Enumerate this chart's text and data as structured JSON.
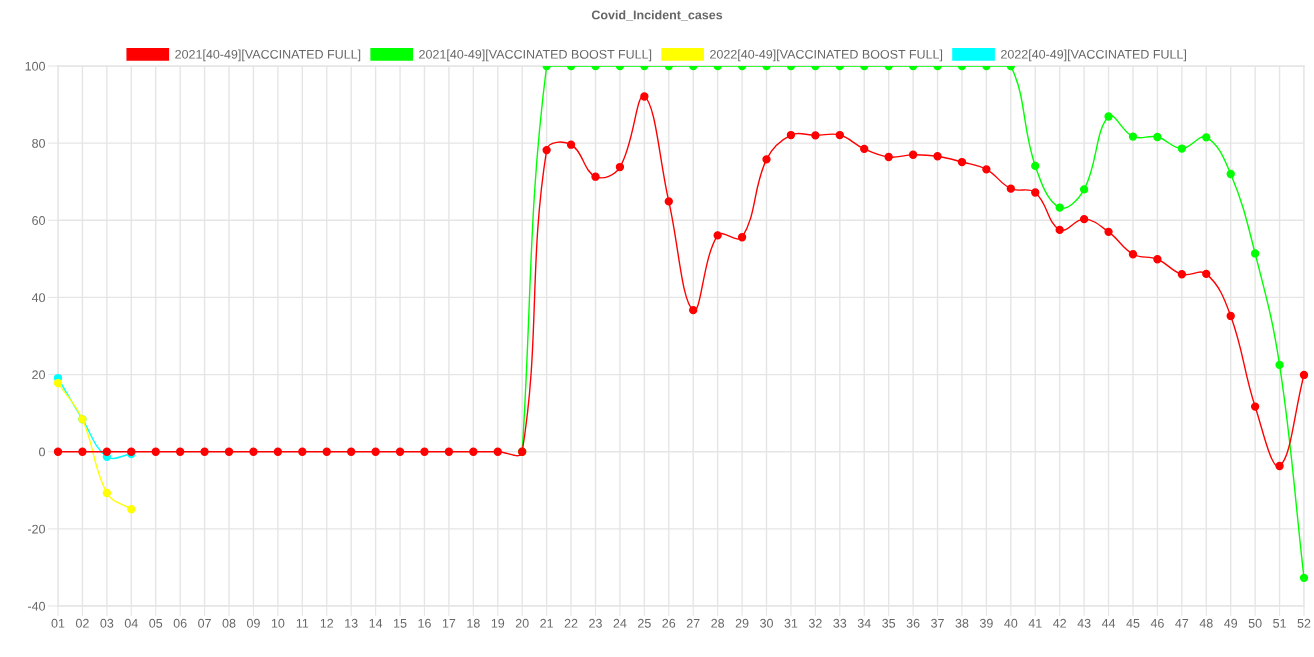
{
  "chart_data": {
    "type": "line",
    "title": "Covid_Incident_cases",
    "categories": [
      "01",
      "02",
      "03",
      "04",
      "05",
      "06",
      "07",
      "08",
      "09",
      "10",
      "11",
      "12",
      "13",
      "14",
      "15",
      "16",
      "17",
      "18",
      "19",
      "20",
      "21",
      "22",
      "23",
      "24",
      "25",
      "26",
      "27",
      "28",
      "29",
      "30",
      "31",
      "32",
      "33",
      "34",
      "35",
      "36",
      "37",
      "38",
      "39",
      "40",
      "41",
      "42",
      "43",
      "44",
      "45",
      "46",
      "47",
      "48",
      "49",
      "50",
      "51",
      "52"
    ],
    "series": [
      {
        "name": "2021[40-49][VACCINATED FULL]",
        "color": "#ff0000",
        "values": [
          0,
          0,
          0,
          0,
          0,
          0,
          0,
          0,
          0,
          0,
          0,
          0,
          0,
          0,
          0,
          0,
          0,
          0,
          0,
          0,
          78.2,
          79.6,
          71.3,
          73.8,
          92.1,
          64.9,
          36.7,
          56.1,
          55.6,
          75.8,
          82.1,
          82.0,
          82.1,
          78.5,
          76.4,
          77.0,
          76.6,
          75.1,
          73.2,
          68.2,
          67.2,
          57.5,
          60.3,
          57.0,
          51.2,
          49.9,
          46.0,
          46.1,
          35.2,
          11.7,
          -3.7,
          19.9
        ]
      },
      {
        "name": "2021[40-49][VACCINATED BOOST FULL]",
        "color": "#00ff00",
        "values": [
          null,
          null,
          null,
          null,
          null,
          null,
          null,
          null,
          null,
          null,
          null,
          null,
          null,
          null,
          null,
          null,
          null,
          null,
          null,
          0,
          100,
          100,
          100,
          100,
          100,
          100,
          100,
          100,
          100,
          100,
          100,
          100,
          100,
          100,
          100,
          100,
          100,
          100,
          100,
          100,
          74.1,
          63.3,
          68.0,
          86.9,
          81.7,
          81.6,
          78.6,
          81.5,
          72.0,
          51.4,
          22.5,
          -32.7
        ]
      },
      {
        "name": "2022[40-49][VACCINATED BOOST FULL]",
        "color": "#ffff00",
        "values": [
          17.8,
          8.4,
          -10.7,
          -14.9,
          null,
          null,
          null,
          null,
          null,
          null,
          null,
          null,
          null,
          null,
          null,
          null,
          null,
          null,
          null,
          null,
          null,
          null,
          null,
          null,
          null,
          null,
          null,
          null,
          null,
          null,
          null,
          null,
          null,
          null,
          null,
          null,
          null,
          null,
          null,
          null,
          null,
          null,
          null,
          null,
          null,
          null,
          null,
          null,
          null,
          null,
          null,
          null
        ]
      },
      {
        "name": "2022[40-49][VACCINATED FULL]",
        "color": "#00ffff",
        "values": [
          19.1,
          8.4,
          -1.3,
          -0.6,
          null,
          null,
          null,
          null,
          null,
          null,
          null,
          null,
          null,
          null,
          null,
          null,
          null,
          null,
          null,
          null,
          null,
          null,
          null,
          null,
          null,
          null,
          null,
          null,
          null,
          null,
          null,
          null,
          null,
          null,
          null,
          null,
          null,
          null,
          null,
          null,
          null,
          null,
          null,
          null,
          null,
          null,
          null,
          null,
          null,
          null,
          null,
          null
        ]
      }
    ],
    "ylim": [
      -40,
      100
    ],
    "yticks": [
      -40,
      -20,
      0,
      20,
      40,
      60,
      80,
      100
    ],
    "grid": true,
    "legend": "top",
    "marker": "circle",
    "line_style": "solid"
  }
}
